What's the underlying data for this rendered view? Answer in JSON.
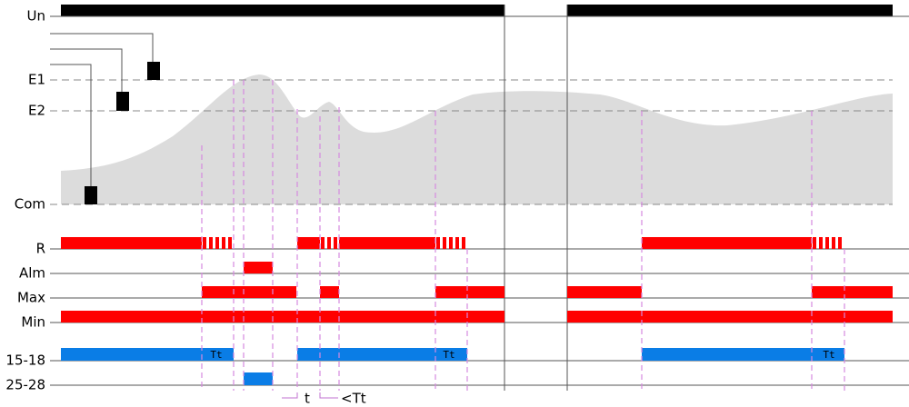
{
  "rows": [
    "Un",
    "E1",
    "E2",
    "Com",
    "R",
    "Alm",
    "Max",
    "Min",
    "15-18",
    "25-28"
  ],
  "bar_labels": [
    "Tt",
    "Tt",
    "Tt"
  ],
  "timing_labels": [
    "t",
    "<Tt"
  ]
}
